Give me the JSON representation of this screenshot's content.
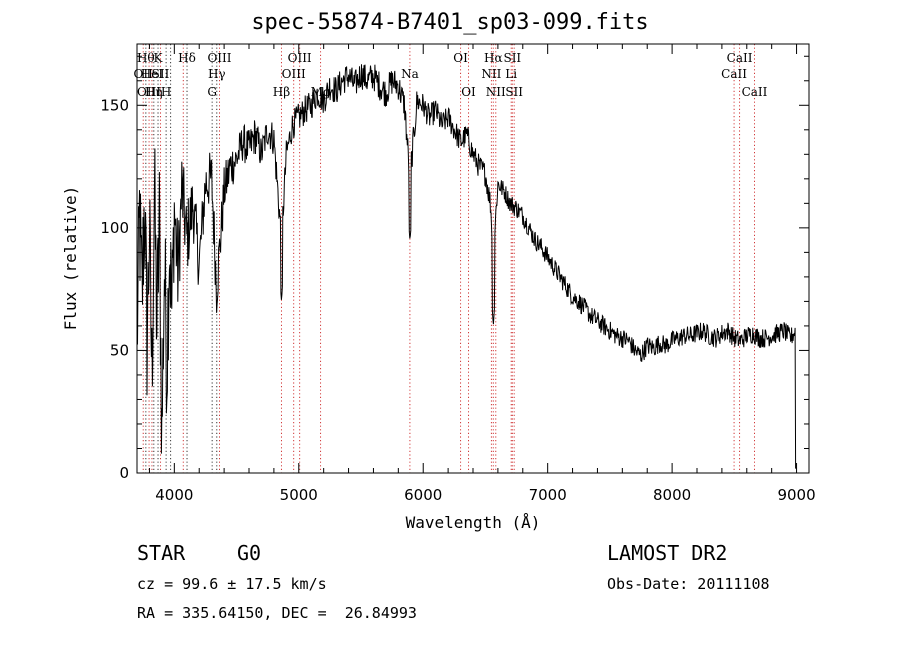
{
  "title": "spec-55874-B7401_sp03-099.fits",
  "info": {
    "class": "STAR",
    "subclass": "G0",
    "survey": "LAMOST DR2",
    "cz": "cz = 99.6 ± 17.5 km/s",
    "obs_date": "Obs-Date: 20111108",
    "coords": "RA = 335.64150, DEC =  26.84993"
  },
  "chart_data": {
    "type": "line",
    "title": "spec-55874-B7401_sp03-099.fits",
    "xlabel": "Wavelength (Å)",
    "ylabel": "Flux (relative)",
    "xlim": [
      3700,
      9100
    ],
    "ylim": [
      0,
      175
    ],
    "xticks": [
      4000,
      5000,
      6000,
      7000,
      8000,
      9000
    ],
    "yticks": [
      0,
      50,
      100,
      150
    ],
    "grid": false,
    "series": [
      {
        "color": "#000000",
        "x": [
          3700,
          3720,
          3740,
          3760,
          3780,
          3800,
          3820,
          3840,
          3860,
          3880,
          3900,
          3920,
          3940,
          3960,
          3980,
          4000,
          4030,
          4060,
          4100,
          4150,
          4200,
          4250,
          4300,
          4340,
          4400,
          4450,
          4500,
          4550,
          4600,
          4650,
          4700,
          4750,
          4800,
          4861,
          4900,
          4950,
          5000,
          5050,
          5100,
          5150,
          5200,
          5250,
          5300,
          5350,
          5400,
          5450,
          5500,
          5550,
          5600,
          5650,
          5700,
          5750,
          5800,
          5850,
          5893,
          5950,
          6000,
          6050,
          6100,
          6150,
          6200,
          6250,
          6300,
          6350,
          6400,
          6450,
          6500,
          6540,
          6563,
          6600,
          6650,
          6700,
          6750,
          6800,
          6850,
          6900,
          6950,
          7000,
          7050,
          7100,
          7150,
          7200,
          7250,
          7300,
          7350,
          7400,
          7450,
          7500,
          7550,
          7600,
          7650,
          7700,
          7750,
          7800,
          7850,
          7900,
          7950,
          8000,
          8050,
          8100,
          8150,
          8200,
          8250,
          8300,
          8350,
          8400,
          8450,
          8500,
          8550,
          8600,
          8650,
          8700,
          8750,
          8800,
          8850,
          8900,
          8950,
          8990,
          9000
        ],
        "y": [
          50,
          105,
          70,
          112,
          55,
          98,
          40,
          115,
          60,
          102,
          15,
          85,
          45,
          96,
          65,
          108,
          80,
          116,
          95,
          110,
          85,
          118,
          120,
          75,
          115,
          125,
          128,
          135,
          132,
          138,
          130,
          140,
          136,
          95,
          130,
          142,
          145,
          148,
          150,
          155,
          152,
          158,
          156,
          160,
          162,
          158,
          163,
          160,
          162,
          158,
          155,
          160,
          158,
          150,
          120,
          152,
          150,
          145,
          148,
          142,
          145,
          140,
          135,
          138,
          130,
          125,
          122,
          110,
          90,
          118,
          115,
          110,
          108,
          105,
          100,
          95,
          92,
          88,
          84,
          80,
          76,
          72,
          70,
          67,
          64,
          62,
          60,
          58,
          56,
          55,
          54,
          50,
          48,
          52,
          51,
          53,
          52,
          54,
          55,
          56,
          56,
          57,
          58,
          56,
          55,
          57,
          58,
          55,
          54,
          56,
          57,
          55,
          55,
          56,
          57,
          58,
          55,
          58,
          0
        ],
        "noise_amplitude": [
          20,
          30,
          30,
          30,
          30,
          30,
          30,
          30,
          30,
          30,
          30,
          30,
          30,
          30,
          26,
          22,
          20,
          18,
          16,
          14,
          12,
          12,
          12,
          12,
          10,
          10,
          8,
          8,
          8,
          8,
          7,
          7,
          7,
          7,
          6,
          6,
          6,
          6,
          6,
          6,
          6,
          6,
          6,
          6,
          6,
          6,
          6,
          6,
          6,
          6,
          6,
          6,
          6,
          6,
          6,
          6,
          5,
          5,
          5,
          5,
          5,
          5,
          5,
          5,
          5,
          5,
          5,
          5,
          5,
          4,
          4,
          4,
          4,
          4,
          4,
          4,
          4,
          4,
          4,
          4,
          4,
          4,
          4,
          4,
          4,
          4,
          4,
          4,
          4,
          4,
          4,
          4,
          4,
          4,
          4,
          4,
          4,
          4,
          4,
          4,
          4,
          4,
          4,
          4,
          4,
          4,
          4,
          4,
          4,
          4,
          4,
          4,
          4,
          4,
          4,
          4,
          4,
          4,
          0
        ]
      }
    ],
    "line_markers": [
      {
        "w": 3750,
        "label": "OII",
        "row": 1,
        "color": "#cc2222"
      },
      {
        "w": 3771,
        "label": "Hθ",
        "row": 0,
        "color": "#222222"
      },
      {
        "w": 3797,
        "label": "OIII",
        "row": 2,
        "color": "#cc2222"
      },
      {
        "w": 3820,
        "label": "HeI",
        "row": 1,
        "color": "#cc2222"
      },
      {
        "w": 3835,
        "label": "Hη",
        "row": 2,
        "color": "#222222"
      },
      {
        "w": 3869,
        "label": "K",
        "row": 0,
        "color": "#222222"
      },
      {
        "w": 3889,
        "label": "SII",
        "row": 1,
        "color": "#cc2222"
      },
      {
        "w": 3934,
        "label": "H",
        "row": 2,
        "color": "#222222"
      },
      {
        "w": 3970,
        "label": "",
        "row": 2,
        "color": "#222222"
      },
      {
        "w": 4072,
        "label": "",
        "row": 1,
        "color": "#cc2222"
      },
      {
        "w": 4102,
        "label": "Hδ",
        "row": 0,
        "color": "#222222"
      },
      {
        "w": 4304,
        "label": "G",
        "row": 2,
        "color": "#222222"
      },
      {
        "w": 4341,
        "label": "Hγ",
        "row": 1,
        "color": "#222222"
      },
      {
        "w": 4363,
        "label": "OIII",
        "row": 0,
        "color": "#cc2222"
      },
      {
        "w": 4861,
        "label": "Hβ",
        "row": 2,
        "color": "#cc2222"
      },
      {
        "w": 4959,
        "label": "OIII",
        "row": 1,
        "color": "#cc2222"
      },
      {
        "w": 5007,
        "label": "OIII",
        "row": 0,
        "color": "#cc2222"
      },
      {
        "w": 5175,
        "label": "Mg",
        "row": 2,
        "color": "#cc2222"
      },
      {
        "w": 5893,
        "label": "Na",
        "row": 1,
        "color": "#cc2222"
      },
      {
        "w": 6300,
        "label": "OI",
        "row": 0,
        "color": "#cc2222"
      },
      {
        "w": 6364,
        "label": "OI",
        "row": 2,
        "color": "#cc2222"
      },
      {
        "w": 6548,
        "label": "NII",
        "row": 1,
        "color": "#cc2222"
      },
      {
        "w": 6563,
        "label": "Hα",
        "row": 0,
        "color": "#cc2222"
      },
      {
        "w": 6583,
        "label": "NII",
        "row": 2,
        "color": "#cc2222"
      },
      {
        "w": 6707,
        "label": "Li",
        "row": 1,
        "color": "#cc2222"
      },
      {
        "w": 6716,
        "label": "SII",
        "row": 0,
        "color": "#cc2222"
      },
      {
        "w": 6731,
        "label": "SII",
        "row": 2,
        "color": "#cc2222"
      },
      {
        "w": 8498,
        "label": "CaII",
        "row": 1,
        "color": "#cc2222"
      },
      {
        "w": 8542,
        "label": "CaII",
        "row": 0,
        "color": "#cc2222"
      },
      {
        "w": 8662,
        "label": "CaII",
        "row": 2,
        "color": "#cc2222"
      }
    ]
  }
}
